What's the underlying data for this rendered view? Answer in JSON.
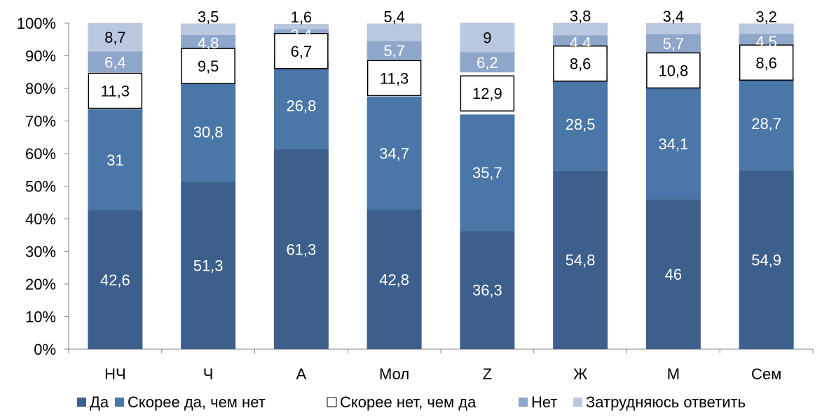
{
  "chart_data": {
    "type": "bar",
    "stacked": true,
    "percent_scale": true,
    "categories": [
      "НЧ",
      "Ч",
      "А",
      "Мол",
      "Z",
      "Ж",
      "М",
      "Сем"
    ],
    "series": [
      {
        "name": "Да",
        "values": [
          42.6,
          51.3,
          61.3,
          42.8,
          36.3,
          54.8,
          46,
          54.9
        ],
        "labels": [
          "42,6",
          "51,3",
          "61,3",
          "42,8",
          "36,3",
          "54,8",
          "46",
          "54,9"
        ],
        "color": "#3c5f8c",
        "label_color": "#ffffff"
      },
      {
        "name": "Скорее да, чем нет",
        "values": [
          31,
          30.8,
          26.8,
          34.7,
          35.7,
          28.5,
          34.1,
          28.7
        ],
        "labels": [
          "31",
          "30,8",
          "26,8",
          "34,7",
          "35,7",
          "28,5",
          "34,1",
          "28,7"
        ],
        "color": "#4a76a8",
        "label_color": "#ffffff"
      },
      {
        "name": "Скорее нет, чем да",
        "values": [
          11.3,
          9.5,
          6.7,
          11.3,
          12.9,
          8.6,
          10.8,
          8.6
        ],
        "labels": [
          "11,3",
          "9,5",
          "6,7",
          "11,3",
          "12,9",
          "8,6",
          "10,8",
          "8,6"
        ],
        "color": "#ffffff",
        "label_color": "#000000"
      },
      {
        "name": "Нет",
        "values": [
          6.4,
          4.8,
          3.4,
          5.7,
          6.2,
          4.4,
          5.7,
          4.5
        ],
        "labels": [
          "6,4",
          "4,8",
          "3,4",
          "5,7",
          "6,2",
          "4,4",
          "5,7",
          "4,5"
        ],
        "color": "#8fa6cb",
        "label_color": "#ffffff"
      },
      {
        "name": "Затрудняюсь ответить",
        "values": [
          8.7,
          3.5,
          1.6,
          5.4,
          9,
          3.8,
          3.4,
          3.2
        ],
        "labels": [
          "8,7",
          "3,5",
          "1,6",
          "5,4",
          "9",
          "3,8",
          "3,4",
          "3,2"
        ],
        "color": "#b9c7df",
        "label_color": "#ffffff"
      }
    ],
    "y_ticks": [
      "0%",
      "10%",
      "20%",
      "30%",
      "40%",
      "50%",
      "60%",
      "70%",
      "80%",
      "90%",
      "100%"
    ],
    "ylim": [
      0,
      100
    ],
    "title": "",
    "xlabel": "",
    "ylabel": "",
    "grid": false,
    "legend_position": "bottom"
  }
}
